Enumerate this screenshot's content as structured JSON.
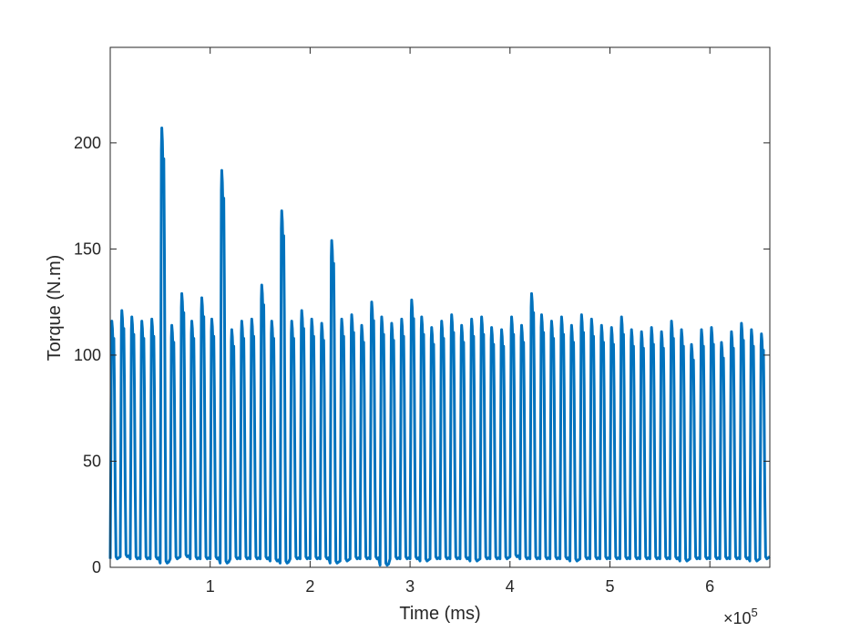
{
  "chart_data": {
    "type": "line",
    "xlabel": "Time (ms)",
    "ylabel": "Torque (N.m)",
    "x_exponent_label": "×10",
    "x_exponent_power": "5",
    "xlim": [
      0,
      660000
    ],
    "ylim": [
      0,
      245
    ],
    "x_ticks": [
      100000,
      200000,
      300000,
      400000,
      500000,
      600000
    ],
    "x_tick_labels": [
      "1",
      "2",
      "3",
      "4",
      "5",
      "6"
    ],
    "y_ticks": [
      0,
      50,
      100,
      150,
      200
    ],
    "y_tick_labels": [
      "0",
      "50",
      "100",
      "150",
      "200"
    ],
    "grid": false,
    "line_color": "#0072BD",
    "series": [
      {
        "cycle_start_times": [
          0,
          10000,
          20000,
          30000,
          40000,
          50000,
          60000,
          70000,
          80000,
          90000,
          100000,
          110000,
          120000,
          130000,
          140000,
          150000,
          160000,
          170000,
          180000,
          190000,
          200000,
          210000,
          220000,
          230000,
          240000,
          250000,
          260000,
          270000,
          280000,
          290000,
          300000,
          310000,
          320000,
          330000,
          340000,
          350000,
          360000,
          370000,
          380000,
          390000,
          400000,
          410000,
          420000,
          430000,
          440000,
          450000,
          460000,
          470000,
          480000,
          490000,
          500000,
          510000,
          520000,
          530000,
          540000,
          550000,
          560000,
          570000,
          580000,
          590000,
          600000,
          610000,
          620000,
          630000,
          640000,
          650000
        ],
        "cycle_peak_torque": [
          116,
          121,
          118,
          116,
          117,
          207,
          114,
          129,
          116,
          127,
          117,
          187,
          112,
          116,
          117,
          133,
          116,
          168,
          116,
          121,
          117,
          115,
          154,
          117,
          119,
          114,
          125,
          118,
          115,
          117,
          126,
          118,
          113,
          116,
          119,
          114,
          117,
          118,
          113,
          112,
          118,
          114,
          129,
          119,
          116,
          118,
          114,
          119,
          117,
          114,
          113,
          118,
          112,
          111,
          113,
          111,
          116,
          112,
          105,
          112,
          113,
          106,
          111,
          115,
          112,
          110
        ],
        "cycle_trough_torque": [
          4,
          5,
          4,
          4,
          4,
          2,
          4,
          5,
          4,
          4,
          4,
          2,
          4,
          4,
          4,
          4,
          3,
          2,
          4,
          4,
          4,
          4,
          2,
          3,
          4,
          4,
          4,
          1,
          4,
          4,
          4,
          3,
          4,
          4,
          4,
          4,
          3,
          4,
          4,
          4,
          5,
          4,
          4,
          4,
          4,
          4,
          3,
          4,
          4,
          4,
          4,
          4,
          4,
          4,
          4,
          4,
          4,
          3,
          4,
          4,
          4,
          4,
          4,
          4,
          3,
          4
        ]
      }
    ]
  }
}
